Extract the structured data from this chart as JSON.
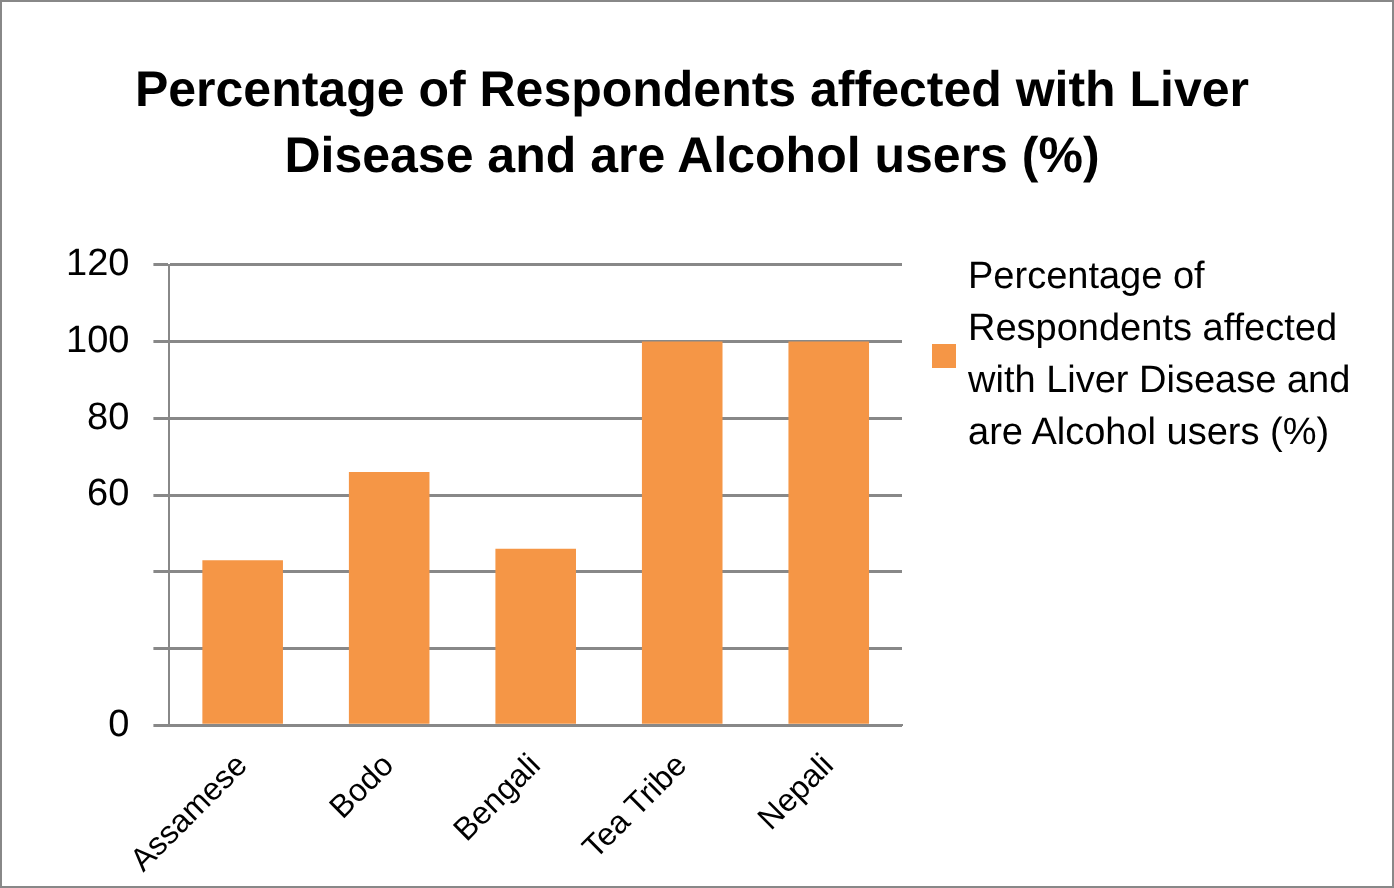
{
  "chart_data": {
    "type": "bar",
    "title": "Percentage of Respondents affected with Liver Disease and are Alcohol users (%)",
    "categories": [
      "Assamese",
      "Bodo",
      "Bengali",
      "Tea Tribe",
      "Nepali"
    ],
    "series": [
      {
        "name": "Percentage of Respondents affected with Liver Disease and are Alcohol users (%)",
        "color": "#f59646",
        "values": [
          43,
          66,
          46,
          100,
          100
        ]
      }
    ],
    "ylim": [
      0,
      120
    ],
    "yticks": [
      0,
      {
        "value": 20,
        "label": null
      },
      {
        "value": 40,
        "label": null
      },
      60,
      80,
      100,
      120
    ],
    "grid": "y",
    "legend": "right"
  }
}
